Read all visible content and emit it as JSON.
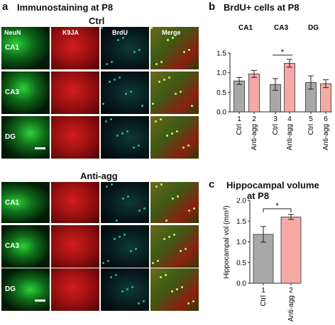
{
  "panels": {
    "a": {
      "letter": "a",
      "title": "Immunostaining at P8",
      "columns": [
        "NeuN",
        "K9JA",
        "BrdU",
        "Merge"
      ],
      "groups": [
        {
          "name": "Ctrl",
          "rows": [
            "CA1",
            "CA3",
            "DG"
          ]
        },
        {
          "name": "Anti-agg",
          "rows": [
            "CA1",
            "CA3",
            "DG"
          ]
        }
      ]
    },
    "b": {
      "letter": "b",
      "title": "BrdU+ cells at P8"
    },
    "c": {
      "letter": "c",
      "title_line1": "Hippocampal volume",
      "title_line2": "at P8"
    }
  },
  "colors": {
    "ctrl_bar": "#a8a8a8",
    "antiagg_bar": "#f4a9a5",
    "neun": "#2bd13a",
    "k9ja": "#d21e1e",
    "brdu": "#1fb89a"
  },
  "chart_data": [
    {
      "type": "bar",
      "title": "BrdU+ cells at P8",
      "region_labels": [
        "CA1",
        "CA3",
        "DG"
      ],
      "categories": [
        "1",
        "2",
        "3",
        "4",
        "5",
        "6"
      ],
      "category_groups": [
        "Ctrl",
        "Anti-agg",
        "Ctrl",
        "Anti-agg",
        "Ctrl",
        "Anti-agg"
      ],
      "values": [
        0.79,
        0.97,
        0.7,
        1.24,
        0.75,
        0.72
      ],
      "errors": [
        0.09,
        0.09,
        0.15,
        0.1,
        0.17,
        0.1
      ],
      "ylim": [
        0,
        1.5
      ],
      "yticks": [
        "0.0",
        "0.5",
        "1.0",
        "1.5"
      ],
      "significance": [
        {
          "between": [
            "3",
            "4"
          ],
          "label": "*"
        }
      ]
    },
    {
      "type": "bar",
      "title": "Hippocampal volume at P8",
      "categories": [
        "1",
        "2"
      ],
      "category_groups": [
        "Ctrl",
        "Anti-agg"
      ],
      "values": [
        1.18,
        1.6
      ],
      "errors": [
        0.19,
        0.06
      ],
      "ylabel": "Hippocampal vol (mm³)",
      "ylim": [
        0,
        2.0
      ],
      "yticks": [
        "0.0",
        "0.5",
        "1.0",
        "1.5",
        "2.0"
      ],
      "significance": [
        {
          "between": [
            "1",
            "2"
          ],
          "label": "*"
        }
      ]
    }
  ]
}
